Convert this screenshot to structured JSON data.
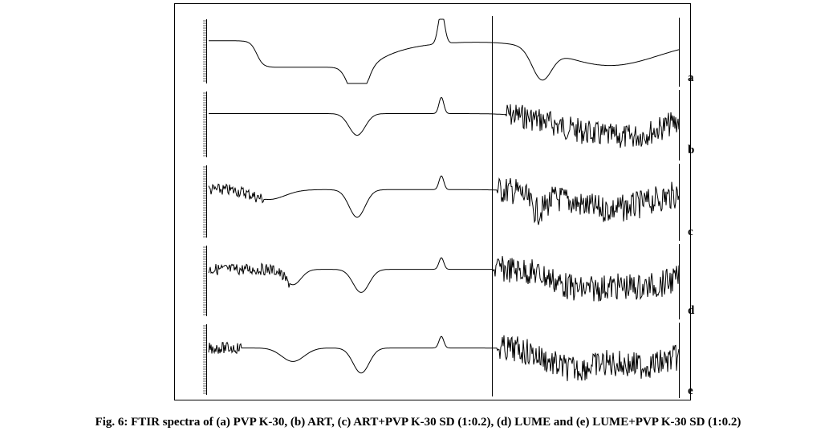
{
  "figure": {
    "panels": [
      {
        "label": "a"
      },
      {
        "label": "b"
      },
      {
        "label": "c"
      },
      {
        "label": "d"
      },
      {
        "label": "e"
      }
    ],
    "caption": "Fig. 6: FTIR spectra of (a) PVP K-30, (b) ART, (c) ART+PVP K-30 SD (1:0.2), (d) LUME and (e) LUME+PVP K-30 SD (1:0.2)"
  }
}
